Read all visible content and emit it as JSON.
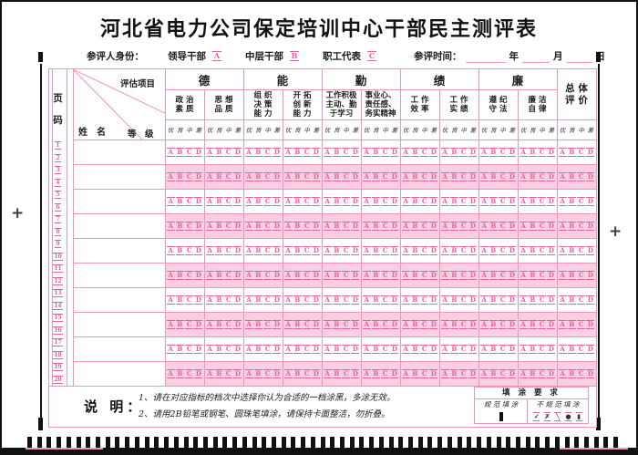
{
  "page": {
    "title": "河北省电力公司保定培训中心干部民主测评表"
  },
  "identity": {
    "label": "参评人身份：",
    "options": [
      {
        "label": "领导干部",
        "code": "A"
      },
      {
        "label": "中层干部",
        "code": "B"
      },
      {
        "label": "职工代表",
        "code": "C"
      }
    ]
  },
  "eval_time": {
    "label": "参评时间：",
    "units": [
      "年",
      "月",
      "日"
    ]
  },
  "table": {
    "page_header": [
      "页",
      "码"
    ],
    "corner": {
      "top_right": "评估项目",
      "bottom_left": "姓　名",
      "bottom_mid": "等　级"
    },
    "groups": [
      {
        "name": "德",
        "cols": [
          [
            "政 治",
            "素 质"
          ],
          [
            "思 想",
            "品 质"
          ]
        ]
      },
      {
        "name": "能",
        "cols": [
          [
            "组 织",
            "决 策",
            "能 力"
          ],
          [
            "开 拓",
            "创 新",
            "能 力"
          ]
        ]
      },
      {
        "name": "勤",
        "cols": [
          [
            "工作积极",
            "主动、勤",
            "于学习"
          ],
          [
            "事业心、",
            "责任感、",
            "务实精神"
          ]
        ]
      },
      {
        "name": "绩",
        "cols": [
          [
            "工 作",
            "效 率"
          ],
          [
            "工 作",
            "实 绩"
          ]
        ]
      },
      {
        "name": "廉",
        "cols": [
          [
            "遵 纪",
            "守 法"
          ],
          [
            "廉 洁",
            "自 律"
          ]
        ]
      }
    ],
    "overall": [
      "总 体",
      "评 价"
    ],
    "grades": [
      "优",
      "良",
      "中",
      "差"
    ],
    "bubbles": [
      "A",
      "B",
      "C",
      "D"
    ],
    "page_numbers": [
      "1",
      "2",
      "3",
      "4",
      "5",
      "6",
      "7",
      "8",
      "9",
      "10",
      "11",
      "12",
      "13",
      "14",
      "15",
      "16",
      "17",
      "18",
      "19",
      "20"
    ],
    "data_rows": 10
  },
  "notes": {
    "heading": "说  明：",
    "lines": [
      "1、请在对应指标的档次中选择你认为合适的一档涂黑，多涂无效。",
      "2、请用2B铅笔或钢笔、圆珠笔填涂，请保持卡面整洁，勿折叠。"
    ]
  },
  "marking_box": {
    "title": "填 涂 要 求",
    "good_label": "规 范 填 涂",
    "bad_label": "不 规 范 填 涂",
    "bad_marks": [
      "✓",
      "✗",
      "╲",
      "●",
      "▮"
    ]
  },
  "timing_mark_count": 61,
  "colors": {
    "pink_line": "#f193bf",
    "pink_fill": "#f9cfe1",
    "bubble_pink": "#e660a2",
    "ink": "#1a1a1a"
  }
}
